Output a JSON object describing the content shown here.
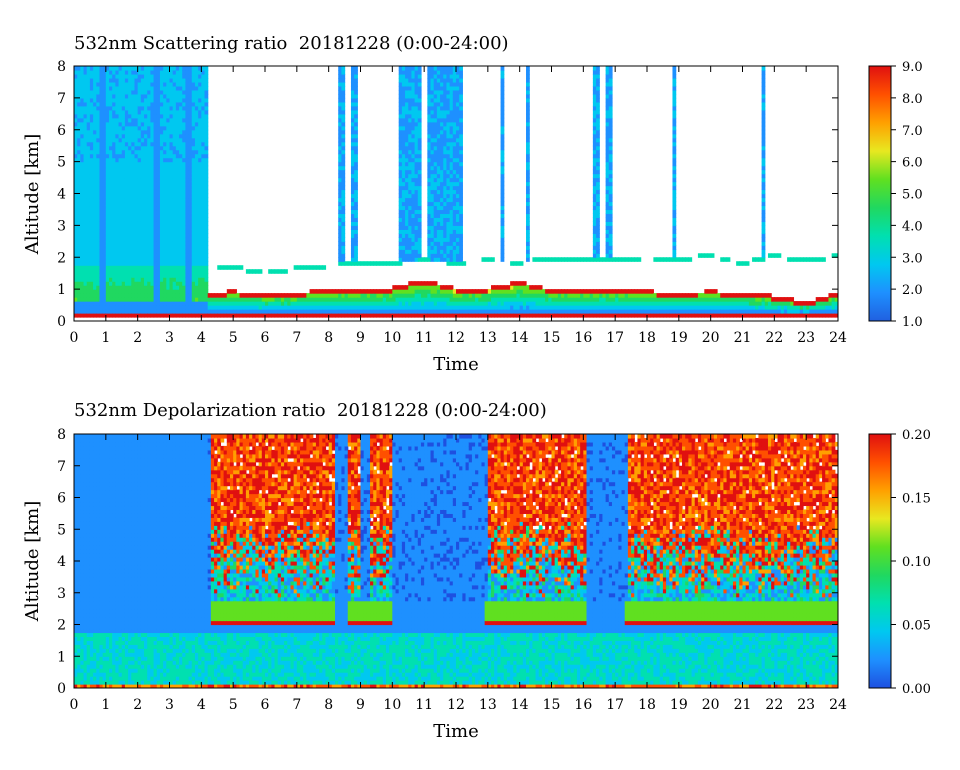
{
  "chart_data": [
    {
      "type": "heatmap",
      "title": "532nm Scattering ratio  20181228 (0:00-24:00)",
      "xlabel": "Time",
      "ylabel": "Altitude [km]",
      "xlim": [
        0,
        24
      ],
      "ylim": [
        0,
        8
      ],
      "x_ticks": [
        "0",
        "1",
        "2",
        "3",
        "4",
        "5",
        "6",
        "7",
        "8",
        "9",
        "10",
        "11",
        "12",
        "13",
        "14",
        "15",
        "16",
        "17",
        "18",
        "19",
        "20",
        "21",
        "22",
        "23",
        "24"
      ],
      "y_ticks": [
        "0",
        "1",
        "2",
        "3",
        "4",
        "5",
        "6",
        "7",
        "8"
      ],
      "colorbar": {
        "range": [
          1.0,
          9.0
        ],
        "tick_labels": [
          "1.0",
          "2.0",
          "3.0",
          "4.0",
          "5.0",
          "6.0",
          "7.0",
          "8.0",
          "9.0"
        ],
        "colors": [
          "#2060e0",
          "#1e90ff",
          "#00c8f0",
          "#00e0b0",
          "#20d860",
          "#60e020",
          "#e8e820",
          "#ffa000",
          "#ff5000",
          "#e01010"
        ]
      },
      "cloud_base_km": [
        [
          4.3,
          1.8
        ],
        [
          5,
          1.75
        ],
        [
          6,
          1.55
        ],
        [
          7,
          1.7
        ],
        [
          8,
          1.8
        ],
        [
          9,
          1.85
        ],
        [
          10,
          1.9
        ],
        [
          11,
          1.95
        ],
        [
          12,
          1.9
        ],
        [
          13,
          1.95
        ],
        [
          14,
          1.9
        ],
        [
          15,
          2.0
        ],
        [
          16,
          2.0
        ],
        [
          17,
          2.0
        ],
        [
          18,
          2.05
        ],
        [
          19,
          2.0
        ],
        [
          20,
          2.1
        ],
        [
          21,
          1.85
        ],
        [
          22,
          2.1
        ],
        [
          23,
          1.95
        ],
        [
          24,
          2.1
        ]
      ],
      "cloud_top_km": [
        [
          4.3,
          0.9
        ],
        [
          5,
          0.95
        ],
        [
          6,
          0.85
        ],
        [
          7,
          0.9
        ],
        [
          8,
          1.0
        ],
        [
          9,
          1.0
        ],
        [
          10,
          1.05
        ],
        [
          11,
          1.3
        ],
        [
          12,
          1.05
        ],
        [
          13,
          1.05
        ],
        [
          14,
          1.25
        ],
        [
          15,
          1.0
        ],
        [
          16,
          1.0
        ],
        [
          17,
          1.05
        ],
        [
          18,
          0.95
        ],
        [
          19,
          0.9
        ],
        [
          20,
          0.95
        ],
        [
          21,
          0.9
        ],
        [
          22,
          0.8
        ],
        [
          23,
          0.6
        ],
        [
          24,
          0.9
        ]
      ],
      "high_cloud_intervals_h": [
        [
          8.35,
          8.5
        ],
        [
          8.75,
          8.85
        ],
        [
          10.2,
          10.9
        ],
        [
          11.1,
          12.2
        ],
        [
          13.4,
          13.5
        ],
        [
          14.2,
          14.3
        ],
        [
          16.3,
          16.5
        ],
        [
          16.7,
          16.9
        ],
        [
          18.8,
          18.9
        ],
        [
          21.6,
          21.7
        ]
      ]
    },
    {
      "type": "heatmap",
      "title": "532nm Depolarization ratio  20181228 (0:00-24:00)",
      "xlabel": "Time",
      "ylabel": "Altitude [km]",
      "xlim": [
        0,
        24
      ],
      "ylim": [
        0,
        8
      ],
      "x_ticks": [
        "0",
        "1",
        "2",
        "3",
        "4",
        "5",
        "6",
        "7",
        "8",
        "9",
        "10",
        "11",
        "12",
        "13",
        "14",
        "15",
        "16",
        "17",
        "18",
        "19",
        "20",
        "21",
        "22",
        "23",
        "24"
      ],
      "y_ticks": [
        "0",
        "1",
        "2",
        "3",
        "4",
        "5",
        "6",
        "7",
        "8"
      ],
      "colorbar": {
        "range": [
          0.0,
          0.2
        ],
        "tick_labels": [
          "0.00",
          "0.05",
          "0.10",
          "0.15",
          "0.20"
        ],
        "colors": [
          "#1e50e0",
          "#1e90ff",
          "#00c8f0",
          "#00e0b0",
          "#20d860",
          "#60e020",
          "#e8e820",
          "#ffa000",
          "#ff5000",
          "#e01010"
        ]
      },
      "noisy_upper_intervals_h": [
        [
          4.3,
          8.2
        ],
        [
          8.6,
          9.0
        ],
        [
          9.3,
          10.0
        ],
        [
          13.0,
          16.1
        ],
        [
          17.4,
          24.0
        ]
      ],
      "ice_layer_intervals_h": [
        [
          4.3,
          8.2
        ],
        [
          8.6,
          10.0
        ],
        [
          12.9,
          16.1
        ],
        [
          17.3,
          24.0
        ]
      ],
      "ice_layer_km": [
        2.0,
        2.7
      ]
    }
  ]
}
